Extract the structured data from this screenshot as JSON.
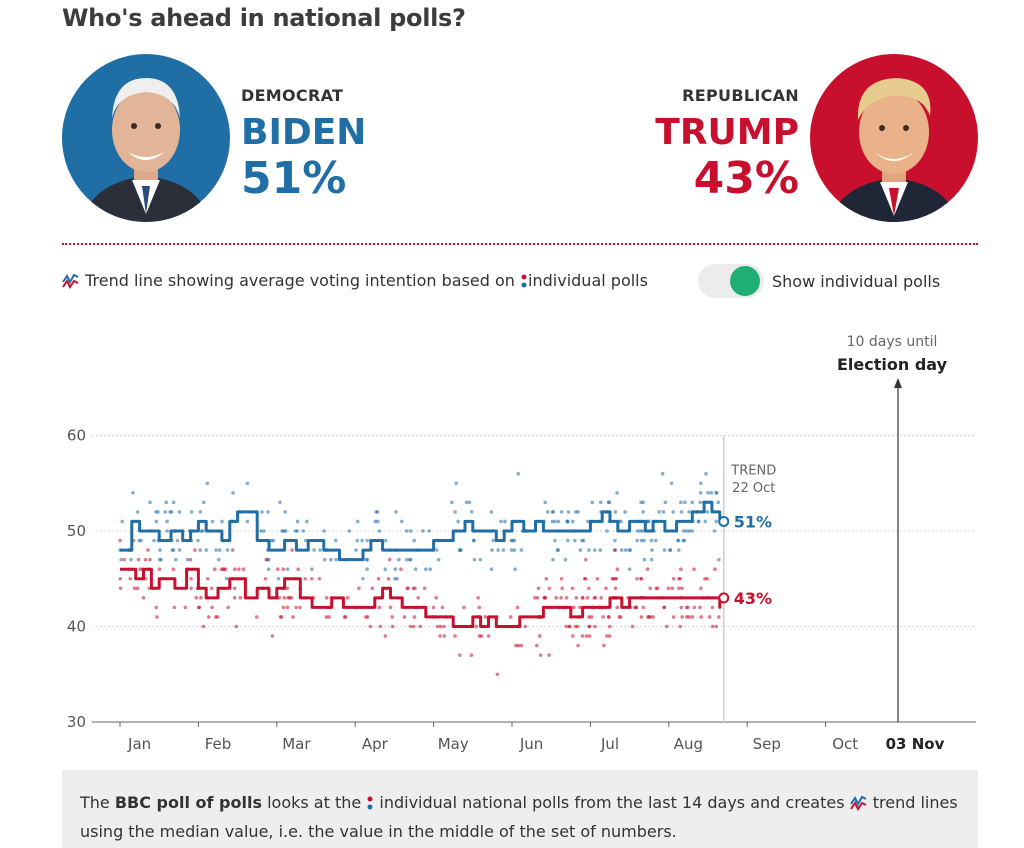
{
  "title": "Who's ahead in national polls?",
  "colors": {
    "dem": "#1f6ea6",
    "rep": "#c8102e",
    "toggle_on": "#1fae76"
  },
  "democrat": {
    "party": "DEMOCRAT",
    "name": "BIDEN",
    "pct": "51%"
  },
  "republican": {
    "party": "REPUBLICAN",
    "name": "TRUMP",
    "pct": "43%"
  },
  "legend": {
    "part1": "Trend line showing average voting intention based on",
    "part2": "individual polls"
  },
  "toggle": {
    "label": "Show individual polls",
    "on": true
  },
  "election": {
    "line1": "10 days until",
    "line2": "Election day",
    "date": "03 Nov"
  },
  "trend_label": {
    "line1": "TREND",
    "line2": "22 Oct"
  },
  "note": {
    "pre": "The ",
    "bold": "BBC poll of polls",
    "mid": " looks at the",
    "mid2": " individual national polls from the last 14 days and creates",
    "post": " trend lines using the median value, i.e. the value in the middle of the set of numbers."
  },
  "chart_data": {
    "type": "line",
    "x_ticks": [
      "Jan",
      "Feb",
      "Mar",
      "Apr",
      "May",
      "Jun",
      "Jul",
      "Aug",
      "Sep",
      "Oct"
    ],
    "ylim": [
      30,
      60
    ],
    "y_ticks": [
      30,
      40,
      50,
      60
    ],
    "grid": true,
    "series": [
      {
        "name": "BIDEN",
        "end_label": "51%",
        "color": "#1f6ea6",
        "points": [
          [
            0,
            48
          ],
          [
            0.3,
            48
          ],
          [
            0.3,
            51
          ],
          [
            0.5,
            51
          ],
          [
            0.5,
            50
          ],
          [
            1.0,
            50
          ],
          [
            1.0,
            49
          ],
          [
            1.3,
            49
          ],
          [
            1.3,
            50
          ],
          [
            1.6,
            50
          ],
          [
            1.6,
            49
          ],
          [
            1.8,
            49
          ],
          [
            1.8,
            50
          ],
          [
            2.0,
            50
          ],
          [
            2.0,
            51
          ],
          [
            2.2,
            51
          ],
          [
            2.2,
            50
          ],
          [
            2.6,
            50
          ],
          [
            2.6,
            49
          ],
          [
            2.8,
            49
          ],
          [
            2.8,
            51
          ],
          [
            3.0,
            51
          ],
          [
            3.0,
            52
          ],
          [
            3.5,
            52
          ],
          [
            3.5,
            49
          ],
          [
            3.8,
            49
          ],
          [
            3.8,
            48
          ],
          [
            4.2,
            48
          ],
          [
            4.2,
            49
          ],
          [
            4.5,
            49
          ],
          [
            4.5,
            48
          ],
          [
            4.8,
            48
          ],
          [
            4.8,
            49
          ],
          [
            5.2,
            49
          ],
          [
            5.2,
            48
          ],
          [
            5.6,
            48
          ],
          [
            5.6,
            47
          ],
          [
            6.2,
            47
          ],
          [
            6.2,
            48
          ],
          [
            6.4,
            48
          ],
          [
            6.4,
            49
          ],
          [
            6.7,
            49
          ],
          [
            6.7,
            48
          ],
          [
            8.0,
            48
          ],
          [
            8.0,
            49
          ],
          [
            8.5,
            49
          ],
          [
            8.5,
            50
          ],
          [
            8.8,
            50
          ],
          [
            8.8,
            51
          ],
          [
            9.0,
            51
          ],
          [
            9.0,
            50
          ],
          [
            9.6,
            50
          ],
          [
            9.6,
            49
          ],
          [
            9.8,
            49
          ],
          [
            9.8,
            50
          ],
          [
            10.0,
            50
          ],
          [
            10.0,
            51
          ],
          [
            10.3,
            51
          ],
          [
            10.3,
            50
          ],
          [
            10.6,
            50
          ],
          [
            10.6,
            51
          ],
          [
            10.8,
            51
          ],
          [
            10.8,
            50
          ],
          [
            12.0,
            50
          ],
          [
            12.0,
            51
          ],
          [
            12.3,
            51
          ],
          [
            12.3,
            52
          ],
          [
            12.5,
            52
          ],
          [
            12.5,
            51
          ],
          [
            12.7,
            51
          ],
          [
            12.7,
            50
          ],
          [
            13.0,
            50
          ],
          [
            13.0,
            51
          ],
          [
            13.4,
            51
          ],
          [
            13.4,
            50
          ],
          [
            13.6,
            50
          ],
          [
            13.6,
            51
          ],
          [
            13.9,
            51
          ],
          [
            13.9,
            50
          ],
          [
            14.2,
            50
          ],
          [
            14.2,
            51
          ],
          [
            14.6,
            51
          ],
          [
            14.6,
            52
          ],
          [
            14.9,
            52
          ],
          [
            14.9,
            53
          ],
          [
            15.1,
            53
          ],
          [
            15.1,
            52
          ],
          [
            15.3,
            52
          ],
          [
            15.3,
            51
          ]
        ]
      },
      {
        "name": "TRUMP",
        "end_label": "43%",
        "color": "#c8102e",
        "points": [
          [
            0,
            46
          ],
          [
            0.4,
            46
          ],
          [
            0.4,
            45
          ],
          [
            0.6,
            45
          ],
          [
            0.6,
            46
          ],
          [
            0.8,
            46
          ],
          [
            0.8,
            44
          ],
          [
            1.0,
            44
          ],
          [
            1.0,
            45
          ],
          [
            1.4,
            45
          ],
          [
            1.4,
            44
          ],
          [
            1.7,
            44
          ],
          [
            1.7,
            46
          ],
          [
            2.0,
            46
          ],
          [
            2.0,
            44
          ],
          [
            2.2,
            44
          ],
          [
            2.2,
            43
          ],
          [
            2.5,
            43
          ],
          [
            2.5,
            44
          ],
          [
            2.8,
            44
          ],
          [
            2.8,
            45
          ],
          [
            3.2,
            45
          ],
          [
            3.2,
            43
          ],
          [
            3.5,
            43
          ],
          [
            3.5,
            44
          ],
          [
            3.8,
            44
          ],
          [
            3.8,
            43
          ],
          [
            4.0,
            43
          ],
          [
            4.0,
            44
          ],
          [
            4.2,
            44
          ],
          [
            4.2,
            45
          ],
          [
            4.6,
            45
          ],
          [
            4.6,
            43
          ],
          [
            4.9,
            43
          ],
          [
            4.9,
            42
          ],
          [
            5.4,
            42
          ],
          [
            5.4,
            43
          ],
          [
            5.7,
            43
          ],
          [
            5.7,
            42
          ],
          [
            6.5,
            42
          ],
          [
            6.5,
            43
          ],
          [
            6.7,
            43
          ],
          [
            6.7,
            44
          ],
          [
            6.9,
            44
          ],
          [
            6.9,
            43
          ],
          [
            7.2,
            43
          ],
          [
            7.2,
            42
          ],
          [
            7.8,
            42
          ],
          [
            7.8,
            41
          ],
          [
            8.5,
            41
          ],
          [
            8.5,
            40
          ],
          [
            9.0,
            40
          ],
          [
            9.0,
            41
          ],
          [
            9.2,
            41
          ],
          [
            9.2,
            40
          ],
          [
            9.4,
            40
          ],
          [
            9.4,
            41
          ],
          [
            9.6,
            41
          ],
          [
            9.6,
            40
          ],
          [
            10.2,
            40
          ],
          [
            10.2,
            41
          ],
          [
            10.8,
            41
          ],
          [
            10.8,
            42
          ],
          [
            11.5,
            42
          ],
          [
            11.5,
            41
          ],
          [
            11.8,
            41
          ],
          [
            11.8,
            42
          ],
          [
            12.5,
            42
          ],
          [
            12.5,
            43
          ],
          [
            12.8,
            43
          ],
          [
            12.8,
            42
          ],
          [
            13.0,
            42
          ],
          [
            13.0,
            43
          ],
          [
            15.3,
            43
          ],
          [
            15.3,
            42
          ],
          [
            15.3,
            43
          ]
        ]
      }
    ]
  }
}
